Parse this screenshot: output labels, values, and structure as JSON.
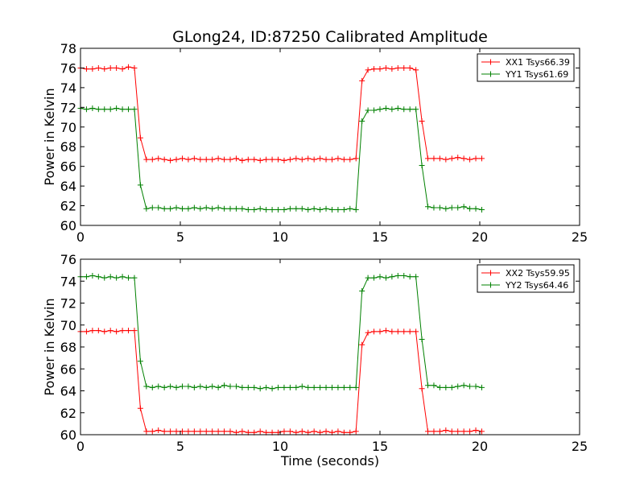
{
  "chart_data": [
    {
      "type": "line",
      "title": "GLong24, ID:87250 Calibrated Amplitude",
      "xlabel": "",
      "ylabel": "Power in Kelvin",
      "xlim": [
        0,
        25
      ],
      "ylim": [
        60,
        78
      ],
      "xticks": [
        0,
        5,
        10,
        15,
        20,
        25
      ],
      "yticks": [
        60,
        62,
        64,
        66,
        68,
        70,
        72,
        74,
        76,
        78
      ],
      "legend_position": "top-right",
      "grid": false,
      "series": [
        {
          "name": "XX1 Tsys66.39",
          "color": "#ff0000",
          "x": [
            0.0,
            0.3,
            0.6,
            0.9,
            1.2,
            1.5,
            1.8,
            2.1,
            2.4,
            2.7,
            3.0,
            3.3,
            3.6,
            3.9,
            4.2,
            4.5,
            4.8,
            5.1,
            5.4,
            5.7,
            6.0,
            6.3,
            6.6,
            6.9,
            7.2,
            7.5,
            7.8,
            8.1,
            8.4,
            8.7,
            9.0,
            9.3,
            9.6,
            9.9,
            10.2,
            10.5,
            10.8,
            11.1,
            11.4,
            11.7,
            12.0,
            12.3,
            12.6,
            12.9,
            13.2,
            13.5,
            13.8,
            14.1,
            14.4,
            14.7,
            15.0,
            15.3,
            15.6,
            15.9,
            16.2,
            16.5,
            16.8,
            17.1,
            17.4,
            17.7,
            18.0,
            18.3,
            18.6,
            18.9,
            19.2,
            19.5,
            19.8,
            20.1
          ],
          "y": [
            76.0,
            75.9,
            75.9,
            76.0,
            75.9,
            76.0,
            76.0,
            75.9,
            76.1,
            76.0,
            68.9,
            66.7,
            66.7,
            66.8,
            66.7,
            66.6,
            66.7,
            66.8,
            66.7,
            66.8,
            66.7,
            66.7,
            66.7,
            66.8,
            66.7,
            66.7,
            66.8,
            66.6,
            66.7,
            66.7,
            66.6,
            66.7,
            66.7,
            66.7,
            66.6,
            66.7,
            66.8,
            66.7,
            66.8,
            66.7,
            66.8,
            66.7,
            66.7,
            66.8,
            66.7,
            66.7,
            66.8,
            74.7,
            75.8,
            75.9,
            75.9,
            76.0,
            75.9,
            76.0,
            76.0,
            76.0,
            75.8,
            70.6,
            66.8,
            66.8,
            66.8,
            66.7,
            66.8,
            66.9,
            66.8,
            66.7,
            66.8,
            66.8
          ]
        },
        {
          "name": "YY1 Tsys61.69",
          "color": "#008000",
          "x": [
            0.0,
            0.3,
            0.6,
            0.9,
            1.2,
            1.5,
            1.8,
            2.1,
            2.4,
            2.7,
            3.0,
            3.3,
            3.6,
            3.9,
            4.2,
            4.5,
            4.8,
            5.1,
            5.4,
            5.7,
            6.0,
            6.3,
            6.6,
            6.9,
            7.2,
            7.5,
            7.8,
            8.1,
            8.4,
            8.7,
            9.0,
            9.3,
            9.6,
            9.9,
            10.2,
            10.5,
            10.8,
            11.1,
            11.4,
            11.7,
            12.0,
            12.3,
            12.6,
            12.9,
            13.2,
            13.5,
            13.8,
            14.1,
            14.4,
            14.7,
            15.0,
            15.3,
            15.6,
            15.9,
            16.2,
            16.5,
            16.8,
            17.1,
            17.4,
            17.7,
            18.0,
            18.3,
            18.6,
            18.9,
            19.2,
            19.5,
            19.8,
            20.1
          ],
          "y": [
            71.9,
            71.8,
            71.9,
            71.8,
            71.8,
            71.8,
            71.9,
            71.8,
            71.8,
            71.8,
            64.1,
            61.7,
            61.8,
            61.8,
            61.7,
            61.7,
            61.8,
            61.7,
            61.7,
            61.8,
            61.7,
            61.8,
            61.7,
            61.8,
            61.7,
            61.7,
            61.7,
            61.7,
            61.6,
            61.6,
            61.7,
            61.6,
            61.6,
            61.6,
            61.6,
            61.7,
            61.7,
            61.7,
            61.6,
            61.7,
            61.6,
            61.7,
            61.6,
            61.6,
            61.6,
            61.7,
            61.6,
            70.6,
            71.7,
            71.7,
            71.8,
            71.9,
            71.8,
            71.9,
            71.8,
            71.8,
            71.8,
            66.1,
            61.9,
            61.8,
            61.8,
            61.7,
            61.8,
            61.8,
            61.9,
            61.7,
            61.7,
            61.6
          ]
        }
      ]
    },
    {
      "type": "line",
      "title": "",
      "xlabel": "Time (seconds)",
      "ylabel": "Power in Kelvin",
      "xlim": [
        0,
        25
      ],
      "ylim": [
        60,
        76
      ],
      "xticks": [
        0,
        5,
        10,
        15,
        20,
        25
      ],
      "yticks": [
        60,
        62,
        64,
        66,
        68,
        70,
        72,
        74,
        76
      ],
      "legend_position": "top-right",
      "grid": false,
      "series": [
        {
          "name": "XX2 Tsys59.95",
          "color": "#ff0000",
          "x": [
            0.0,
            0.3,
            0.6,
            0.9,
            1.2,
            1.5,
            1.8,
            2.1,
            2.4,
            2.7,
            3.0,
            3.3,
            3.6,
            3.9,
            4.2,
            4.5,
            4.8,
            5.1,
            5.4,
            5.7,
            6.0,
            6.3,
            6.6,
            6.9,
            7.2,
            7.5,
            7.8,
            8.1,
            8.4,
            8.7,
            9.0,
            9.3,
            9.6,
            9.9,
            10.2,
            10.5,
            10.8,
            11.1,
            11.4,
            11.7,
            12.0,
            12.3,
            12.6,
            12.9,
            13.2,
            13.5,
            13.8,
            14.1,
            14.4,
            14.7,
            15.0,
            15.3,
            15.6,
            15.9,
            16.2,
            16.5,
            16.8,
            17.1,
            17.4,
            17.7,
            18.0,
            18.3,
            18.6,
            18.9,
            19.2,
            19.5,
            19.8,
            20.1
          ],
          "y": [
            69.4,
            69.4,
            69.5,
            69.5,
            69.4,
            69.5,
            69.4,
            69.5,
            69.5,
            69.5,
            62.4,
            60.3,
            60.3,
            60.4,
            60.3,
            60.3,
            60.3,
            60.3,
            60.3,
            60.3,
            60.3,
            60.3,
            60.3,
            60.3,
            60.3,
            60.3,
            60.2,
            60.3,
            60.2,
            60.2,
            60.3,
            60.2,
            60.2,
            60.2,
            60.3,
            60.3,
            60.2,
            60.3,
            60.2,
            60.3,
            60.2,
            60.3,
            60.2,
            60.3,
            60.2,
            60.2,
            60.3,
            68.2,
            69.3,
            69.4,
            69.4,
            69.5,
            69.4,
            69.4,
            69.4,
            69.4,
            69.4,
            64.2,
            60.3,
            60.3,
            60.3,
            60.4,
            60.3,
            60.3,
            60.3,
            60.3,
            60.4,
            60.3
          ]
        },
        {
          "name": "YY2 Tsys64.46",
          "color": "#008000",
          "x": [
            0.0,
            0.3,
            0.6,
            0.9,
            1.2,
            1.5,
            1.8,
            2.1,
            2.4,
            2.7,
            3.0,
            3.3,
            3.6,
            3.9,
            4.2,
            4.5,
            4.8,
            5.1,
            5.4,
            5.7,
            6.0,
            6.3,
            6.6,
            6.9,
            7.2,
            7.5,
            7.8,
            8.1,
            8.4,
            8.7,
            9.0,
            9.3,
            9.6,
            9.9,
            10.2,
            10.5,
            10.8,
            11.1,
            11.4,
            11.7,
            12.0,
            12.3,
            12.6,
            12.9,
            13.2,
            13.5,
            13.8,
            14.1,
            14.4,
            14.7,
            15.0,
            15.3,
            15.6,
            15.9,
            16.2,
            16.5,
            16.8,
            17.1,
            17.4,
            17.7,
            18.0,
            18.3,
            18.6,
            18.9,
            19.2,
            19.5,
            19.8,
            20.1
          ],
          "y": [
            74.4,
            74.4,
            74.5,
            74.4,
            74.3,
            74.4,
            74.3,
            74.4,
            74.3,
            74.3,
            66.7,
            64.4,
            64.3,
            64.4,
            64.3,
            64.4,
            64.3,
            64.4,
            64.4,
            64.3,
            64.4,
            64.3,
            64.4,
            64.3,
            64.5,
            64.4,
            64.4,
            64.3,
            64.3,
            64.3,
            64.2,
            64.3,
            64.2,
            64.3,
            64.3,
            64.3,
            64.3,
            64.4,
            64.3,
            64.3,
            64.3,
            64.3,
            64.3,
            64.3,
            64.3,
            64.3,
            64.3,
            73.1,
            74.3,
            74.3,
            74.4,
            74.3,
            74.4,
            74.5,
            74.5,
            74.4,
            74.4,
            68.7,
            64.5,
            64.5,
            64.3,
            64.3,
            64.3,
            64.4,
            64.5,
            64.4,
            64.4,
            64.3
          ]
        }
      ]
    }
  ]
}
